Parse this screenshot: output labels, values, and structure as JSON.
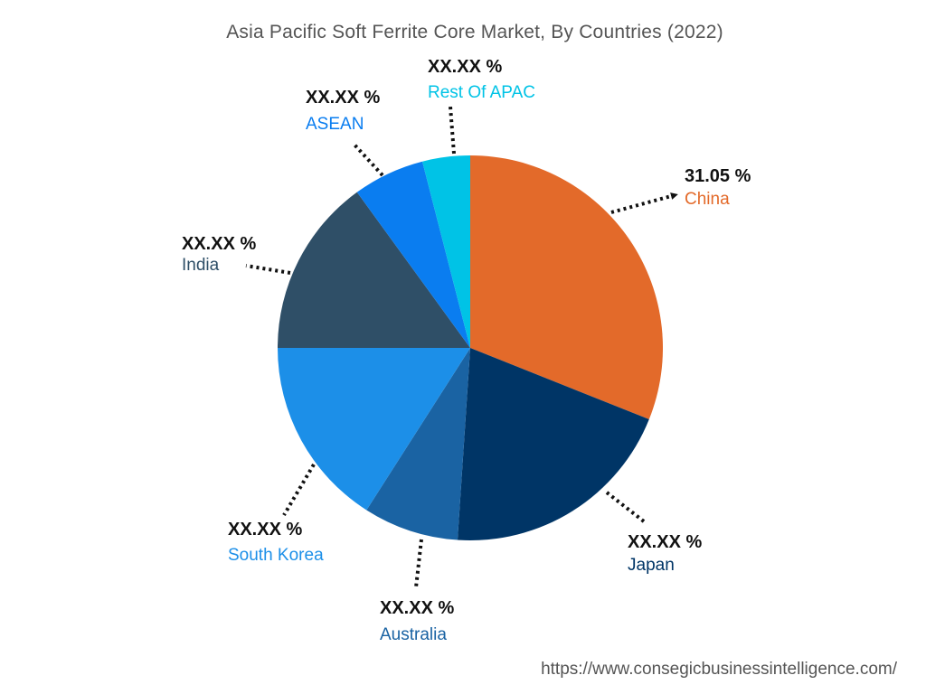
{
  "title": "Asia Pacific Soft Ferrite Core Market, By Countries (2022)",
  "source_url": "https://www.consegicbusinessintelligence.com/",
  "chart_data": {
    "type": "pie",
    "title": "Asia Pacific Soft Ferrite Core Market, By Countries (2022)",
    "start_angle_deg": 0,
    "direction": "clockwise",
    "legend": "none",
    "slices": [
      {
        "label": "China",
        "value_label": "31.05 %",
        "value": 31.05,
        "color": "#E36A2A"
      },
      {
        "label": "Japan",
        "value_label": "XX.XX %",
        "value": 20.0,
        "color": "#003566"
      },
      {
        "label": "Australia",
        "value_label": "XX.XX %",
        "value": 8.0,
        "color": "#1A63A3"
      },
      {
        "label": "South Korea",
        "value_label": "XX.XX %",
        "value": 15.95,
        "color": "#1C8FE8"
      },
      {
        "label": "India",
        "value_label": "XX.XX %",
        "value": 15.0,
        "color": "#2F4F67"
      },
      {
        "label": "ASEAN",
        "value_label": "XX.XX %",
        "value": 6.0,
        "color": "#0A7DF0"
      },
      {
        "label": "Rest Of APAC",
        "value_label": "XX.XX %",
        "value": 4.0,
        "color": "#00C3E6"
      }
    ],
    "label_colors": {
      "China": "#E36A2A",
      "Japan": "#003566",
      "Australia": "#1A63A3",
      "South Korea": "#1C8FE8",
      "India": "#2F4F67",
      "ASEAN": "#0A7DF0",
      "Rest Of APAC": "#00C3E6"
    }
  }
}
